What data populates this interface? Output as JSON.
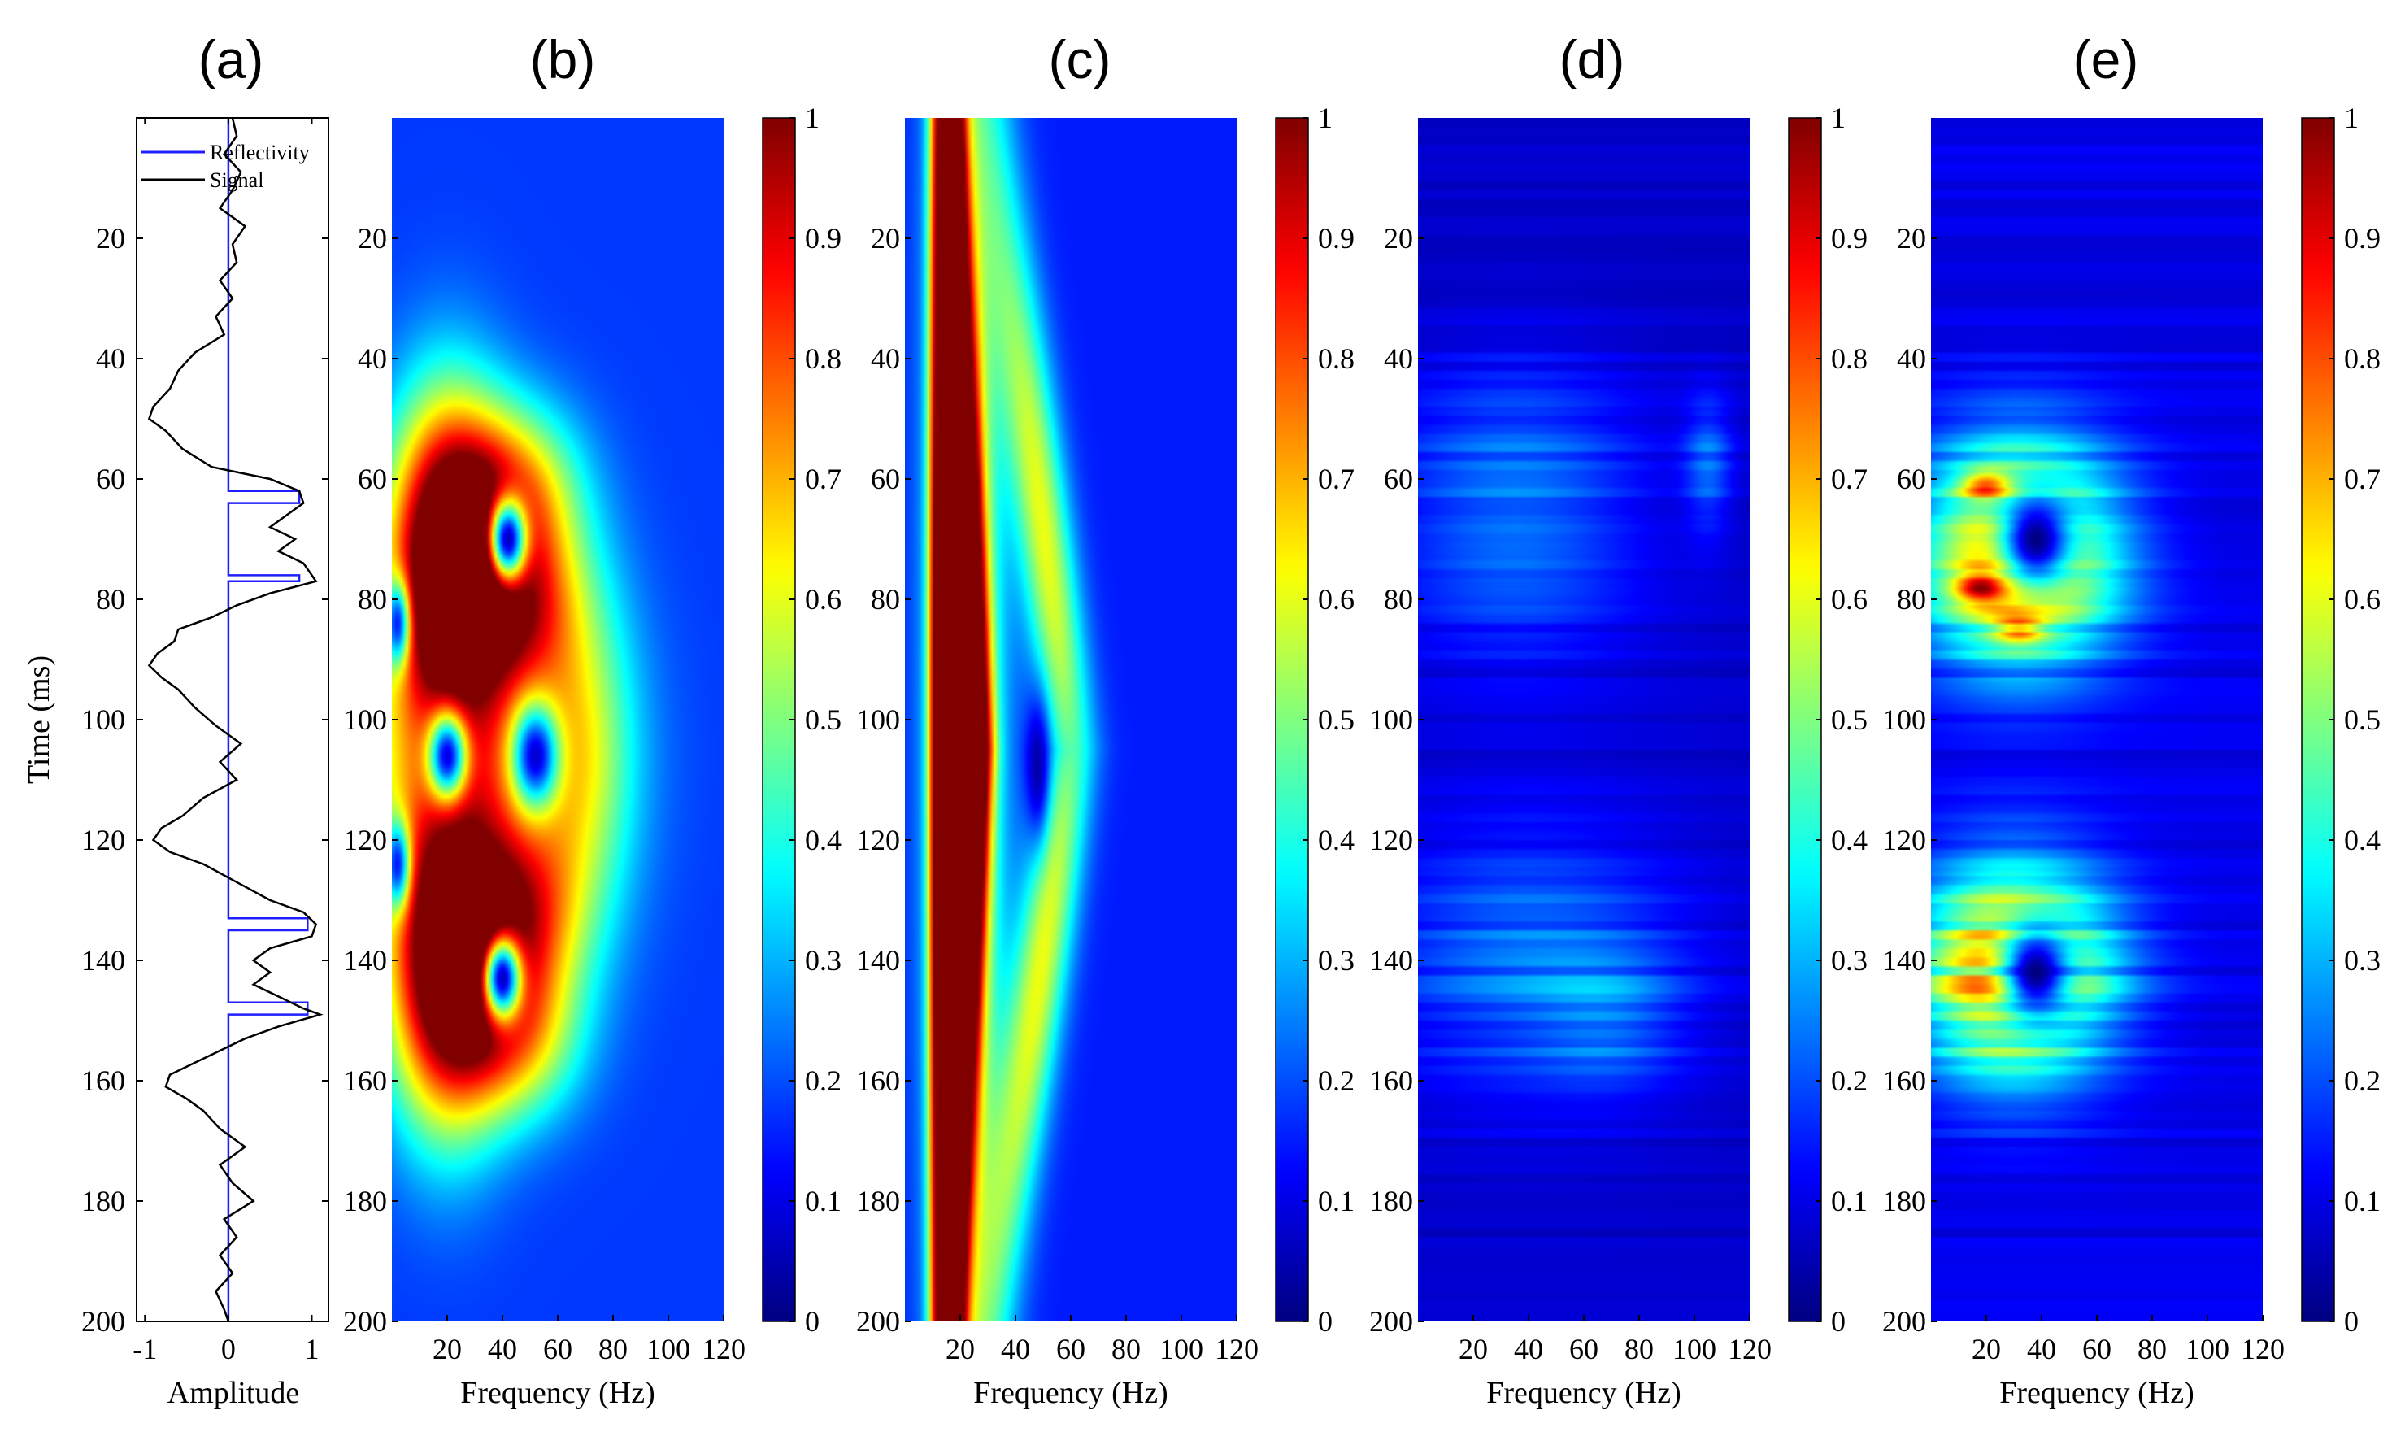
{
  "figure": {
    "panel_labels": [
      "(a)",
      "(b)",
      "(c)",
      "(d)",
      "(e)"
    ]
  },
  "chart_data": [
    {
      "type": "line",
      "panel": "(a)",
      "xlabel": "Amplitude",
      "ylabel": "Time (ms)",
      "xlim": [
        -1.1,
        1.2
      ],
      "ylim": [
        0,
        200
      ],
      "xticks": [
        -1,
        0,
        1
      ],
      "yticks": [
        20,
        40,
        60,
        80,
        100,
        120,
        140,
        160,
        180,
        200
      ],
      "legend": {
        "position": "top-right",
        "entries": [
          "Reflectivity",
          "Signal"
        ]
      },
      "series": [
        {
          "name": "Reflectivity",
          "color": "#1f1fff",
          "time": [
            0,
            62,
            62,
            64,
            64,
            76,
            76,
            77,
            77,
            133,
            133,
            135,
            135,
            147,
            147,
            149,
            149,
            200
          ],
          "amplitude": [
            0,
            0,
            0.85,
            0.85,
            0,
            0,
            0.85,
            0.85,
            0,
            0,
            0.95,
            0.95,
            0,
            0,
            0.95,
            0.95,
            0,
            0
          ]
        },
        {
          "name": "Signal",
          "color": "#000000",
          "time": [
            0,
            3,
            6,
            9,
            12,
            15,
            18,
            21,
            24,
            27,
            30,
            33,
            36,
            39,
            42,
            45,
            48,
            50,
            52,
            55,
            58,
            60,
            62,
            64,
            66,
            68,
            70,
            72,
            74,
            76,
            77,
            79,
            81,
            83,
            85,
            87,
            89,
            91,
            93,
            95,
            98,
            101,
            104,
            107,
            110,
            113,
            116,
            118,
            120,
            122,
            124,
            127,
            130,
            132,
            134,
            136,
            138,
            140,
            142,
            144,
            146,
            148,
            149,
            151,
            153,
            155,
            157,
            159,
            161,
            163,
            165,
            168,
            171,
            174,
            177,
            180,
            183,
            186,
            189,
            192,
            195,
            198,
            200
          ],
          "amplitude": [
            0.05,
            0.1,
            -0.05,
            0.15,
            0.05,
            -0.1,
            0.2,
            0.05,
            0.1,
            -0.1,
            0.05,
            -0.15,
            -0.05,
            -0.4,
            -0.6,
            -0.7,
            -0.9,
            -0.95,
            -0.75,
            -0.55,
            -0.2,
            0.5,
            0.85,
            0.9,
            0.7,
            0.5,
            0.8,
            0.6,
            0.9,
            1.0,
            1.05,
            0.5,
            0.1,
            -0.2,
            -0.6,
            -0.65,
            -0.85,
            -0.95,
            -0.8,
            -0.6,
            -0.4,
            -0.15,
            0.15,
            -0.1,
            0.1,
            -0.3,
            -0.55,
            -0.8,
            -0.9,
            -0.7,
            -0.3,
            0.1,
            0.5,
            0.9,
            1.05,
            1.0,
            0.5,
            0.3,
            0.5,
            0.3,
            0.6,
            0.9,
            1.1,
            0.6,
            0.2,
            -0.1,
            -0.4,
            -0.7,
            -0.75,
            -0.5,
            -0.3,
            -0.1,
            0.2,
            -0.1,
            0.05,
            0.3,
            -0.05,
            0.1,
            -0.1,
            0.05,
            -0.15,
            -0.05,
            0.0
          ]
        }
      ]
    },
    {
      "type": "heatmap",
      "panel": "(b)",
      "xlabel": "Frequency (Hz)",
      "ylabel": "",
      "xlim": [
        0,
        120
      ],
      "ylim": [
        0,
        200
      ],
      "xticks": [
        20,
        40,
        60,
        80,
        100,
        120
      ],
      "yticks": [
        20,
        40,
        60,
        80,
        100,
        120,
        140,
        160,
        180,
        200
      ],
      "colorbar": {
        "colormap": "jet",
        "range": [
          0,
          1
        ],
        "ticks": [
          0,
          0.1,
          0.2,
          0.3,
          0.4,
          0.5,
          0.6,
          0.7,
          0.8,
          0.9,
          1
        ]
      },
      "components": [
        {
          "t": 72,
          "f": 20,
          "st": 18,
          "sf": 15,
          "a": 0.95
        },
        {
          "t": 142,
          "f": 20,
          "st": 18,
          "sf": 15,
          "a": 0.9
        },
        {
          "t": 106,
          "f": 28,
          "st": 22,
          "sf": 30,
          "a": 0.5
        },
        {
          "t": 62,
          "f": 45,
          "st": 10,
          "sf": 16,
          "a": 0.45
        },
        {
          "t": 80,
          "f": 45,
          "st": 10,
          "sf": 16,
          "a": 0.45
        },
        {
          "t": 133,
          "f": 45,
          "st": 10,
          "sf": 16,
          "a": 0.45
        },
        {
          "t": 152,
          "f": 45,
          "st": 10,
          "sf": 16,
          "a": 0.45
        },
        {
          "t": 106,
          "f": 68,
          "st": 20,
          "sf": 14,
          "a": 0.3
        }
      ],
      "holes": [
        {
          "t": 70,
          "f": 42,
          "st": 5,
          "sf": 5,
          "d": 0.95
        },
        {
          "t": 143,
          "f": 40,
          "st": 5,
          "sf": 5,
          "d": 0.95
        },
        {
          "t": 106,
          "f": 20,
          "st": 5,
          "sf": 5,
          "d": 0.9
        },
        {
          "t": 106,
          "f": 52,
          "st": 6,
          "sf": 6,
          "d": 0.9
        },
        {
          "t": 84,
          "f": 2,
          "st": 5,
          "sf": 3,
          "d": 0.8
        },
        {
          "t": 124,
          "f": 2,
          "st": 5,
          "sf": 3,
          "d": 0.8
        }
      ],
      "background": 0.18,
      "striped": false
    },
    {
      "type": "heatmap",
      "panel": "(c)",
      "xlabel": "Frequency (Hz)",
      "ylabel": "",
      "xlim": [
        0,
        120
      ],
      "ylim": [
        0,
        200
      ],
      "xticks": [
        20,
        40,
        60,
        80,
        100,
        120
      ],
      "yticks": [
        20,
        40,
        60,
        80,
        100,
        120,
        140,
        160,
        180,
        200
      ],
      "colorbar": {
        "colormap": "jet",
        "range": [
          0,
          1
        ],
        "ticks": [
          0,
          0.1,
          0.2,
          0.3,
          0.4,
          0.5,
          0.6,
          0.7,
          0.8,
          0.9,
          1
        ]
      },
      "ridges": [
        {
          "f0": 12,
          "f1": 12,
          "t0": 0,
          "t1": 200,
          "tc": 105,
          "ts": 120,
          "w": 2.5,
          "a": 0.8
        },
        {
          "f0": 18,
          "f1": 18,
          "t0": 0,
          "t1": 200,
          "tc": 105,
          "ts": 95,
          "w": 2.5,
          "a": 0.95
        },
        {
          "f0": 18,
          "f1": 26,
          "t0": 0,
          "t1": 105,
          "tc": 105,
          "ts": 80,
          "w": 4,
          "a": 0.95
        },
        {
          "f0": 26,
          "f1": 18,
          "t0": 105,
          "t1": 200,
          "tc": 105,
          "ts": 80,
          "w": 4,
          "a": 0.95
        },
        {
          "f0": 22,
          "f1": 22,
          "t0": 0,
          "t1": 200,
          "tc": 105,
          "ts": 120,
          "w": 10,
          "a": 0.4
        },
        {
          "f0": 32,
          "f1": 60,
          "t0": 0,
          "t1": 105,
          "tc": 70,
          "ts": 40,
          "w": 7,
          "a": 0.45
        },
        {
          "f0": 60,
          "f1": 32,
          "t0": 105,
          "t1": 200,
          "tc": 140,
          "ts": 40,
          "w": 7,
          "a": 0.45
        }
      ],
      "holes": [
        {
          "t": 108,
          "f": 48,
          "st": 8,
          "sf": 3,
          "d": 0.85
        }
      ],
      "background": 0.15,
      "striped": false
    },
    {
      "type": "heatmap",
      "panel": "(d)",
      "xlabel": "Frequency (Hz)",
      "ylabel": "",
      "xlim": [
        0,
        120
      ],
      "ylim": [
        0,
        200
      ],
      "xticks": [
        20,
        40,
        60,
        80,
        100,
        120
      ],
      "yticks": [
        20,
        40,
        60,
        80,
        100,
        120,
        140,
        160,
        180,
        200
      ],
      "colorbar": {
        "colormap": "jet",
        "range": [
          0,
          1
        ],
        "ticks": [
          0,
          0.1,
          0.2,
          0.3,
          0.4,
          0.5,
          0.6,
          0.7,
          0.8,
          0.9,
          1
        ]
      },
      "components": [
        {
          "t": 65,
          "f": 35,
          "st": 16,
          "sf": 32,
          "a": 0.18
        },
        {
          "t": 58,
          "f": 105,
          "st": 8,
          "sf": 6,
          "a": 0.15
        },
        {
          "t": 140,
          "f": 40,
          "st": 16,
          "sf": 38,
          "a": 0.16
        },
        {
          "t": 150,
          "f": 70,
          "st": 8,
          "sf": 18,
          "a": 0.1
        }
      ],
      "holes": [],
      "background": 0.07,
      "striped": true
    },
    {
      "type": "heatmap",
      "panel": "(e)",
      "xlabel": "Frequency (Hz)",
      "ylabel": "",
      "xlim": [
        0,
        120
      ],
      "ylim": [
        0,
        200
      ],
      "xticks": [
        20,
        40,
        60,
        80,
        100,
        120
      ],
      "yticks": [
        20,
        40,
        60,
        80,
        100,
        120,
        140,
        160,
        180,
        200
      ],
      "colorbar": {
        "colormap": "jet",
        "range": [
          0,
          1
        ],
        "ticks": [
          0,
          0.1,
          0.2,
          0.3,
          0.4,
          0.5,
          0.6,
          0.7,
          0.8,
          0.9,
          1
        ]
      },
      "components": [
        {
          "t": 72,
          "f": 32,
          "st": 12,
          "sf": 24,
          "a": 0.75
        },
        {
          "t": 142,
          "f": 30,
          "st": 12,
          "sf": 24,
          "a": 0.7
        },
        {
          "t": 61,
          "f": 20,
          "st": 1.5,
          "sf": 6,
          "a": 0.35
        },
        {
          "t": 78,
          "f": 18,
          "st": 1.5,
          "sf": 6,
          "a": 0.35
        },
        {
          "t": 85,
          "f": 32,
          "st": 1.5,
          "sf": 6,
          "a": 0.3
        }
      ],
      "holes": [
        {
          "t": 70,
          "f": 38,
          "st": 6,
          "sf": 10,
          "d": 1.0
        },
        {
          "t": 142,
          "f": 38,
          "st": 6,
          "sf": 10,
          "d": 1.0
        }
      ],
      "background": 0.1,
      "striped": true
    }
  ]
}
